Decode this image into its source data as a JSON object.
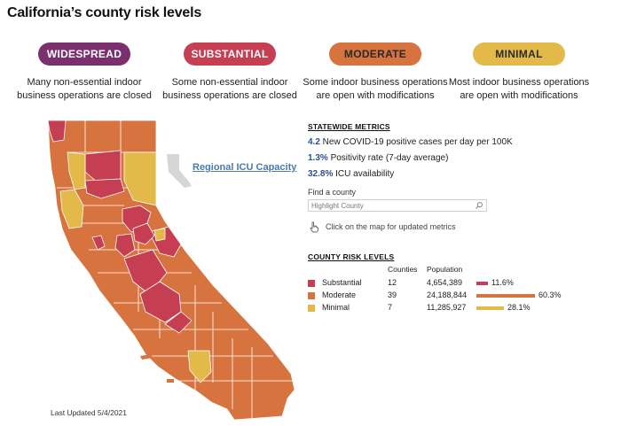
{
  "title": "California’s county risk levels",
  "colors": {
    "widespread": "#7a2f6e",
    "substantial": "#c63e52",
    "moderate": "#d6733e",
    "minimal": "#e3ba4a"
  },
  "tiers": [
    {
      "label": "WIDESPREAD",
      "desc1": "Many non-essential indoor",
      "desc2": "business operations are closed"
    },
    {
      "label": "SUBSTANTIAL",
      "desc1": "Some non-essential indoor",
      "desc2": "business operations are closed"
    },
    {
      "label": "MODERATE",
      "desc1": "Some indoor business operations",
      "desc2": "are open with modifications"
    },
    {
      "label": "MINIMAL",
      "desc1": "Most indoor business operations",
      "desc2": "are open with modifications"
    }
  ],
  "map": {
    "icu_link": "Regional ICU Capacity"
  },
  "metrics": {
    "heading": "STATEWIDE METRICS",
    "cases_value": "4.2",
    "cases_text": " New COVID-19 positive cases per day per 100K",
    "positivity_value": "1.3%",
    "positivity_text": " Positivity rate (7-day average)",
    "icu_value": "32.8%",
    "icu_text": " ICU availability",
    "find_label": "Find a county",
    "search_placeholder": "Highlight County",
    "hint": "Click on the map for updated metrics"
  },
  "risk": {
    "heading": "COUNTY RISK LEVELS",
    "col_counties": "Counties",
    "col_population": "Population",
    "rows": [
      {
        "name": "Substantial",
        "counties": "12",
        "population": "4,654,389",
        "pct": "11.6%",
        "share": 0.116
      },
      {
        "name": "Moderate",
        "counties": "39",
        "population": "24,188,844",
        "pct": "60.3%",
        "share": 0.603
      },
      {
        "name": "Minimal",
        "counties": "7",
        "population": "11,285,927",
        "pct": "28.1%",
        "share": 0.281
      }
    ]
  },
  "updated": "Last Updated 5/4/2021"
}
